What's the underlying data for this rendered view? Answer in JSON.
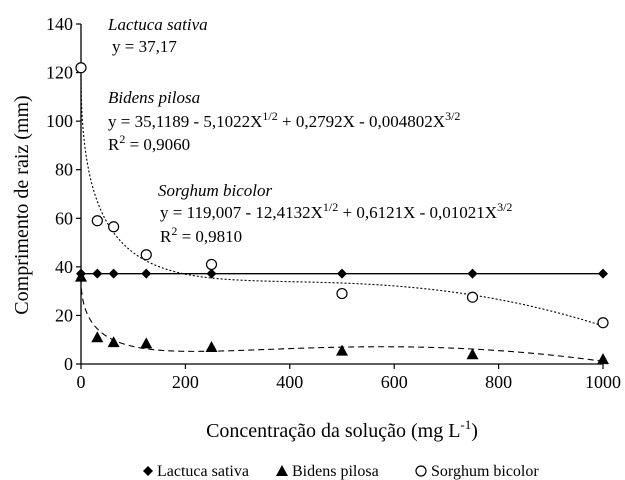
{
  "chart_data": {
    "type": "scatter",
    "xlabel_main": "Concentração da solução (mg L",
    "xlabel_sup": "-1",
    "xlabel_tail": ")",
    "ylabel": "Comprimento de raiz (mm)",
    "xlim": [
      0,
      1000
    ],
    "ylim": [
      0,
      140
    ],
    "x_ticks": [
      "0",
      "200",
      "400",
      "600",
      "800",
      "1000"
    ],
    "y_ticks": [
      "0",
      "20",
      "40",
      "60",
      "80",
      "100",
      "120",
      "140"
    ],
    "grid": false,
    "legend_position": "bottom",
    "series": [
      {
        "name": "Lactuca sativa",
        "marker": "diamond",
        "color": "#000000",
        "x": [
          0,
          31.25,
          62.5,
          125,
          250,
          500,
          750,
          1000
        ],
        "y": [
          37.2,
          37.2,
          37.2,
          37.2,
          37.2,
          37.2,
          37.2,
          37.2
        ],
        "fit": "y = 37,17",
        "fit_style": "solid"
      },
      {
        "name": "Bidens pilosa",
        "marker": "triangle",
        "color": "#000000",
        "x": [
          0,
          31.25,
          62.5,
          125,
          250,
          500,
          750,
          1000
        ],
        "y": [
          36,
          11,
          9,
          8.5,
          7,
          5.5,
          4,
          2
        ],
        "fit": "y = 35,1189 - 5,1022X^1/2 + 0,2792X - 0,004802X^3/2",
        "r2": "0,9060",
        "fit_style": "dashed"
      },
      {
        "name": "Sorghum bicolor",
        "marker": "circle-open",
        "color": "#000000",
        "x": [
          0,
          31.25,
          62.5,
          125,
          250,
          500,
          750,
          1000
        ],
        "y": [
          122,
          59,
          56.5,
          45,
          41,
          29,
          27.5,
          17
        ],
        "fit": "y = 119,007 - 12,4132X^1/2 + 0,6121X - 0,01021X^3/2",
        "r2": "0,9810",
        "fit_style": "dotted"
      }
    ]
  },
  "annotations": {
    "lactuca_name": "Lactuca sativa",
    "lactuca_eq": "y = 37,17",
    "bidens_name": "Bidens pilosa",
    "bidens_eq_a": "y = 35,1189 - 5,1022X",
    "bidens_eq_sup1": "1/2",
    "bidens_eq_b": " + 0,2792X - 0,004802X",
    "bidens_eq_sup2": "3/2",
    "bidens_r2_label": "R",
    "bidens_r2_sup": "2",
    "bidens_r2_value": " = 0,9060",
    "sorghum_name": "Sorghum bicolor",
    "sorghum_eq_a": "y = 119,007 - 12,4132X",
    "sorghum_eq_sup1": "1/2",
    "sorghum_eq_b": " + 0,6121X - 0,01021X",
    "sorghum_eq_sup2": "3/2",
    "sorghum_r2_label": "R",
    "sorghum_r2_sup": "2",
    "sorghum_r2_value": " = 0,9810"
  },
  "legend": {
    "lactuca": "Lactuca sativa",
    "bidens": "Bidens pilosa",
    "sorghum": "Sorghum bicolor"
  }
}
